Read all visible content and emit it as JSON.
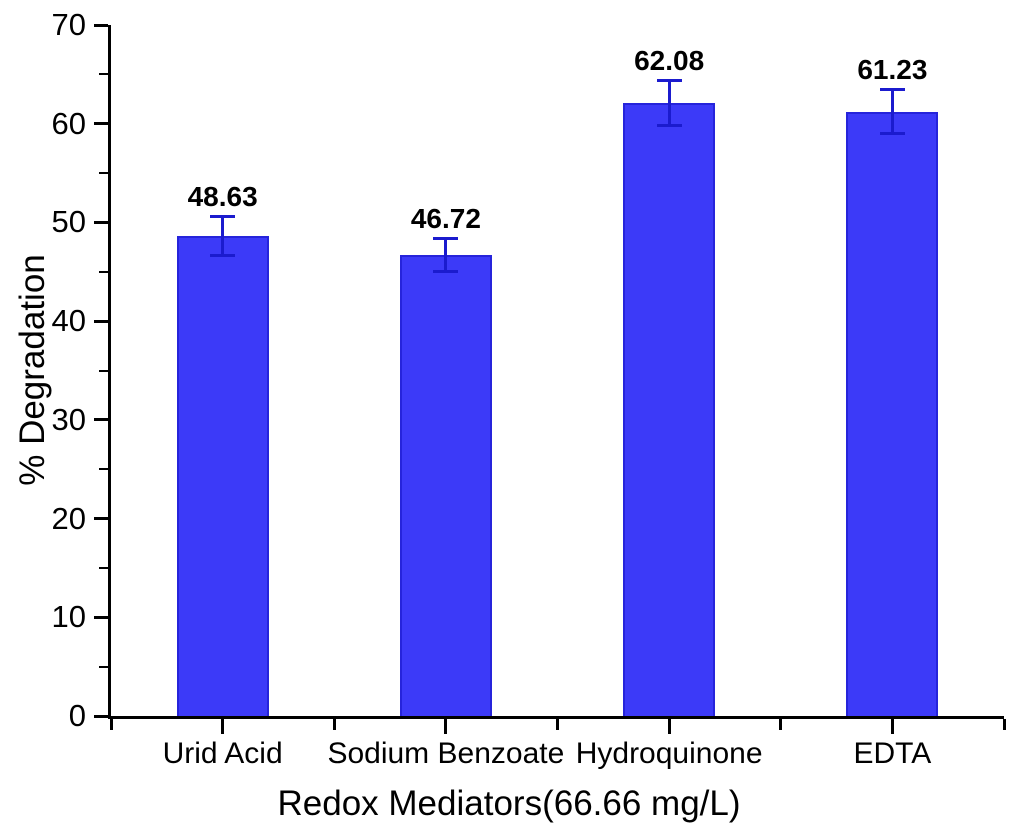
{
  "chart_data": {
    "type": "bar",
    "title": "",
    "xlabel": "Redox Mediators(66.66 mg/L)",
    "ylabel": "% Degradation",
    "categories": [
      "Urid Acid",
      "Sodium Benzoate",
      "Hydroquinone",
      "EDTA"
    ],
    "values": [
      48.63,
      46.72,
      62.08,
      61.23
    ],
    "errors": [
      2.0,
      1.7,
      2.3,
      2.3
    ],
    "value_labels": [
      "48.63",
      "46.72",
      "62.08",
      "61.23"
    ],
    "ylim": [
      0,
      70
    ],
    "ytick_major_step": 10,
    "ytick_minor_step": 5,
    "grid": false,
    "legend": null,
    "colors": {
      "bar_fill": "#3C3AF8",
      "bar_edge": "#2624DB",
      "error_bar": "#1B1BCE",
      "axis": "#000000",
      "text": "#000000"
    }
  }
}
